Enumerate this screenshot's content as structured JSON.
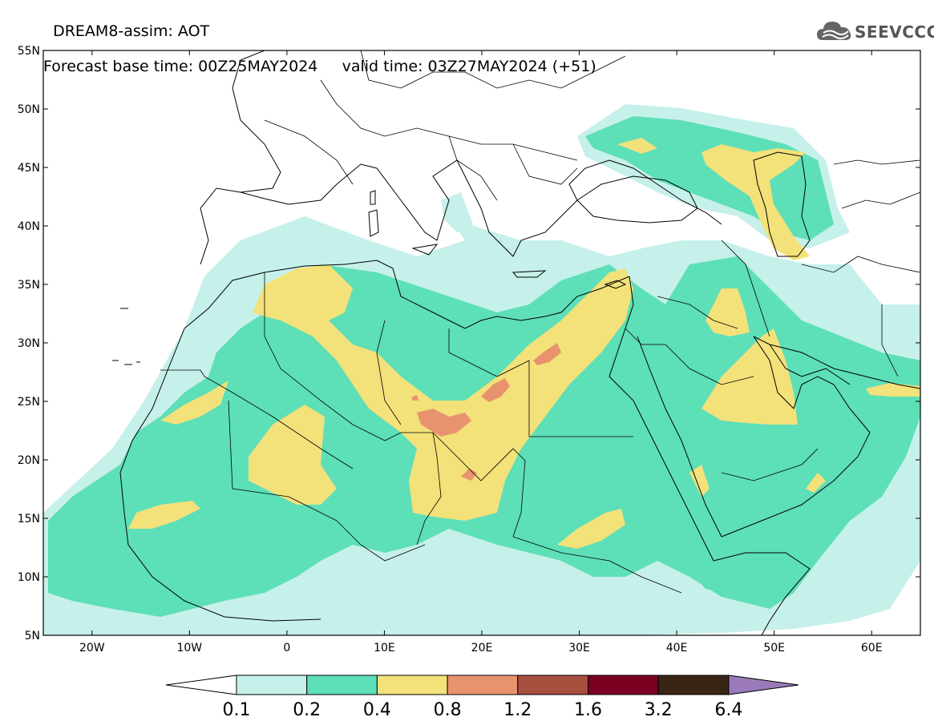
{
  "header": {
    "line1": "DREAM8-assim: AOT",
    "line2_base": "Forecast base time: 00Z25MAY2024",
    "line2_valid": "valid time: 03Z27MAY2024 (+51)"
  },
  "logo": {
    "text": "SEEVCCC",
    "icon": "cloud-icon"
  },
  "map": {
    "lon_range": [
      -25,
      65
    ],
    "lat_range": [
      5,
      55
    ],
    "lat_ticks": [
      "5N",
      "10N",
      "15N",
      "20N",
      "25N",
      "30N",
      "35N",
      "40N",
      "45N",
      "50N",
      "55N"
    ],
    "lon_ticks": [
      "20W",
      "10W",
      "0",
      "10E",
      "20E",
      "30E",
      "40E",
      "50E",
      "60E"
    ]
  },
  "colorbar": {
    "labels": [
      "0.1",
      "0.2",
      "0.4",
      "0.8",
      "1.2",
      "1.6",
      "3.2",
      "6.4"
    ],
    "colors": [
      "#c6f0ea",
      "#5ddfb8",
      "#f3e17a",
      "#e8936e",
      "#a8503f",
      "#7c0022",
      "#3a2414"
    ],
    "under_color": "#ffffff",
    "over_color": "#9a7ab8"
  }
}
